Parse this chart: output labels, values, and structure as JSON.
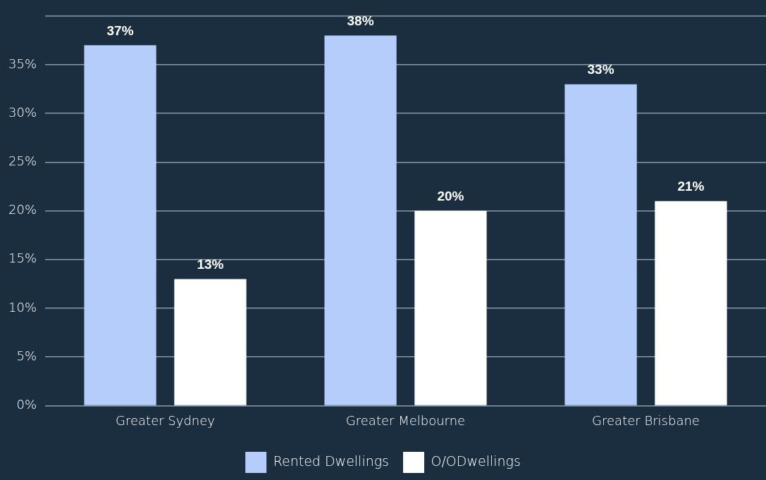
{
  "chart_data": {
    "type": "bar",
    "categories": [
      "Greater Sydney",
      "Greater Melbourne",
      "Greater Brisbane"
    ],
    "series": [
      {
        "name": "Rented Dwellings",
        "color": "#b4cdfa",
        "values": [
          37,
          38,
          33
        ],
        "value_labels": [
          "37%",
          "38%",
          "33%"
        ]
      },
      {
        "name": "O/ODwellings",
        "color": "#ffffff",
        "values": [
          13,
          20,
          21
        ],
        "value_labels": [
          "13%",
          "20%",
          "21%"
        ]
      }
    ],
    "ylim": [
      0,
      40
    ],
    "yticks": [
      {
        "value": 0,
        "label": "0%"
      },
      {
        "value": 5,
        "label": "5%"
      },
      {
        "value": 10,
        "label": "10%"
      },
      {
        "value": 15,
        "label": "15%"
      },
      {
        "value": 20,
        "label": "20%"
      },
      {
        "value": 25,
        "label": "25%"
      },
      {
        "value": 30,
        "label": "30%"
      },
      {
        "value": 35,
        "label": "35%"
      },
      {
        "value": 40,
        "label": null
      }
    ],
    "grid": "y",
    "legend": "bottom"
  }
}
